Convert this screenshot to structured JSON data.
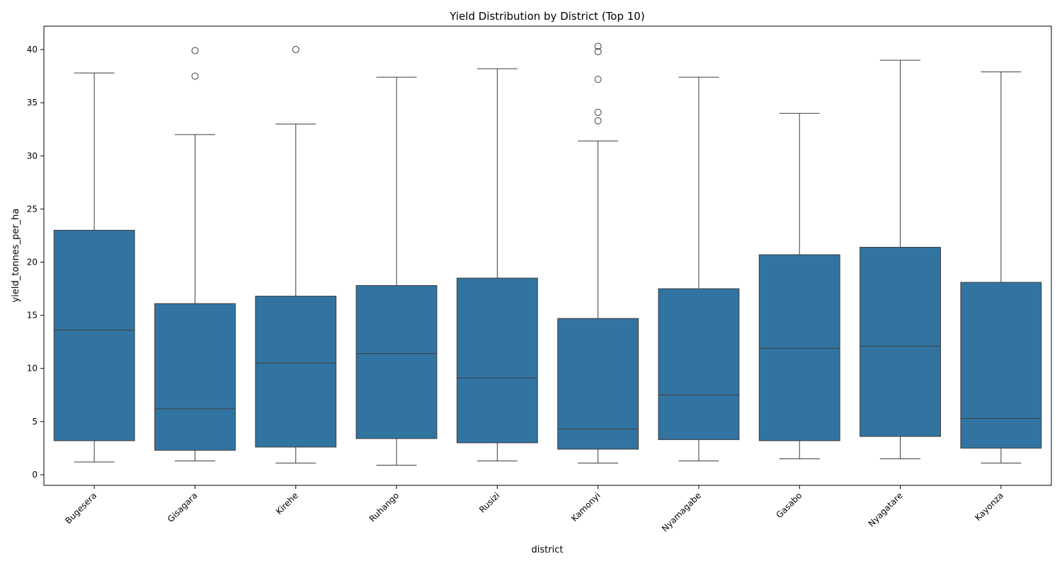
{
  "chart_data": {
    "type": "box",
    "title": "Yield Distribution by District (Top 10)",
    "xlabel": "district",
    "ylabel": "yield_tonnes_per_ha",
    "ylim": [
      -1,
      42.2
    ],
    "yticks": [
      0,
      5,
      10,
      15,
      20,
      25,
      30,
      35,
      40
    ],
    "grid": false,
    "box_color": "#3274a1",
    "line_color": "#3d3d3d",
    "categories": [
      "Bugesera",
      "Gisagara",
      "Kirehe",
      "Ruhango",
      "Rusizi",
      "Kamonyi",
      "Nyamagabe",
      "Gasabo",
      "Nyagatare",
      "Kayonza"
    ],
    "boxes": [
      {
        "whisker_low": 1.2,
        "q1": 3.2,
        "median": 13.6,
        "q3": 23.0,
        "whisker_high": 37.8,
        "outliers": []
      },
      {
        "whisker_low": 1.3,
        "q1": 2.3,
        "median": 6.2,
        "q3": 16.1,
        "whisker_high": 32.0,
        "outliers": [
          37.5,
          39.9
        ]
      },
      {
        "whisker_low": 1.1,
        "q1": 2.6,
        "median": 10.5,
        "q3": 16.8,
        "whisker_high": 33.0,
        "outliers": [
          40.0
        ]
      },
      {
        "whisker_low": 0.9,
        "q1": 3.4,
        "median": 11.4,
        "q3": 17.8,
        "whisker_high": 37.4,
        "outliers": []
      },
      {
        "whisker_low": 1.3,
        "q1": 3.0,
        "median": 9.1,
        "q3": 18.5,
        "whisker_high": 38.2,
        "outliers": []
      },
      {
        "whisker_low": 1.1,
        "q1": 2.4,
        "median": 4.3,
        "q3": 14.7,
        "whisker_high": 31.4,
        "outliers": [
          33.3,
          34.1,
          37.2,
          39.8,
          40.3
        ]
      },
      {
        "whisker_low": 1.3,
        "q1": 3.3,
        "median": 7.5,
        "q3": 17.5,
        "whisker_high": 37.4,
        "outliers": []
      },
      {
        "whisker_low": 1.5,
        "q1": 3.2,
        "median": 11.9,
        "q3": 20.7,
        "whisker_high": 34.0,
        "outliers": []
      },
      {
        "whisker_low": 1.5,
        "q1": 3.6,
        "median": 12.1,
        "q3": 21.4,
        "whisker_high": 39.0,
        "outliers": []
      },
      {
        "whisker_low": 1.1,
        "q1": 2.5,
        "median": 5.3,
        "q3": 18.1,
        "whisker_high": 37.9,
        "outliers": []
      }
    ]
  }
}
